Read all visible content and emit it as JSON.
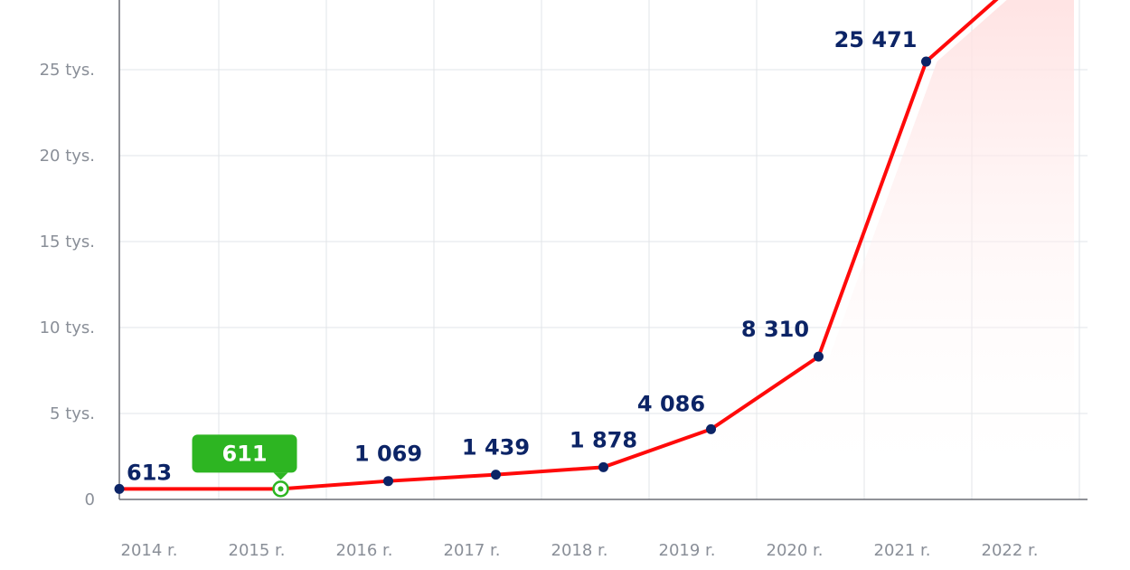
{
  "chart_data": {
    "type": "line",
    "title": "",
    "xlabel": "",
    "ylabel": "",
    "categories": [
      "2014 r.",
      "2015 r.",
      "2016 r.",
      "2017 r.",
      "2018 r.",
      "2019 r.",
      "2020 r.",
      "2021 r.",
      "2022 r."
    ],
    "y_tick_labels": [
      "0",
      "5 tys.",
      "10 tys.",
      "15 tys.",
      "20 tys.",
      "25 tys."
    ],
    "y_tick_values": [
      0,
      5000,
      10000,
      15000,
      20000,
      25000
    ],
    "ylim": [
      0,
      30000
    ],
    "grid": true,
    "legend": "none",
    "series": [
      {
        "values": [
          613,
          611,
          1069,
          1439,
          1878,
          4086,
          8310,
          25471,
          31000
        ],
        "labels": [
          "613",
          "611",
          "1 069",
          "1 439",
          "1 878",
          "4 086",
          "8 310",
          "25 471",
          ""
        ]
      }
    ],
    "highlight_index": 1,
    "colors": {
      "line": "#ff0a0a",
      "marker": "#0c2466",
      "label": "#0c2466",
      "highlight": "#2db522",
      "grid": "#e2e4e8",
      "axis": "#6b6f76",
      "forecast_fill": "#ffe3e3"
    }
  }
}
